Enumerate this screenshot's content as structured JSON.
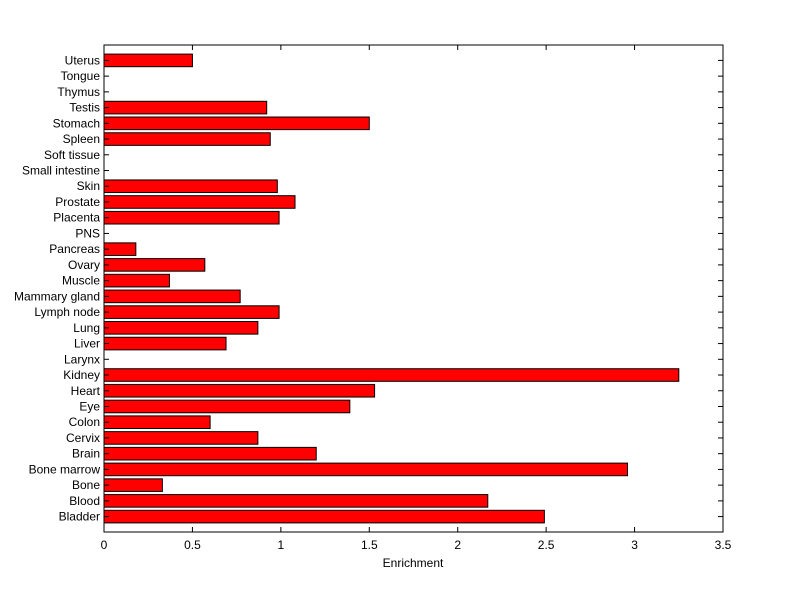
{
  "chart_data": {
    "type": "bar",
    "orientation": "horizontal",
    "xlabel": "Enrichment",
    "ylabel": "",
    "title": "",
    "xlim": [
      0,
      3.5
    ],
    "xticks": [
      "0",
      "0.5",
      "1",
      "1.5",
      "2",
      "2.5",
      "3",
      "3.5"
    ],
    "grid": false,
    "bar_color": "#ff0000",
    "bar_edge_color": "#000000",
    "categories": [
      "Bladder",
      "Blood",
      "Bone",
      "Bone marrow",
      "Brain",
      "Cervix",
      "Colon",
      "Eye",
      "Heart",
      "Kidney",
      "Larynx",
      "Liver",
      "Lung",
      "Lymph node",
      "Mammary gland",
      "Muscle",
      "Ovary",
      "Pancreas",
      "PNS",
      "Placenta",
      "Prostate",
      "Skin",
      "Small intestine",
      "Soft tissue",
      "Spleen",
      "Stomach",
      "Testis",
      "Thymus",
      "Tongue",
      "Uterus"
    ],
    "values": [
      2.49,
      2.17,
      0.33,
      2.96,
      1.2,
      0.87,
      0.6,
      1.39,
      1.53,
      3.25,
      0,
      0.69,
      0.87,
      0.99,
      0.77,
      0.37,
      0.57,
      0.18,
      0,
      0.99,
      1.08,
      0.98,
      0,
      0,
      0.94,
      1.5,
      0.92,
      0,
      0,
      0.5
    ]
  }
}
